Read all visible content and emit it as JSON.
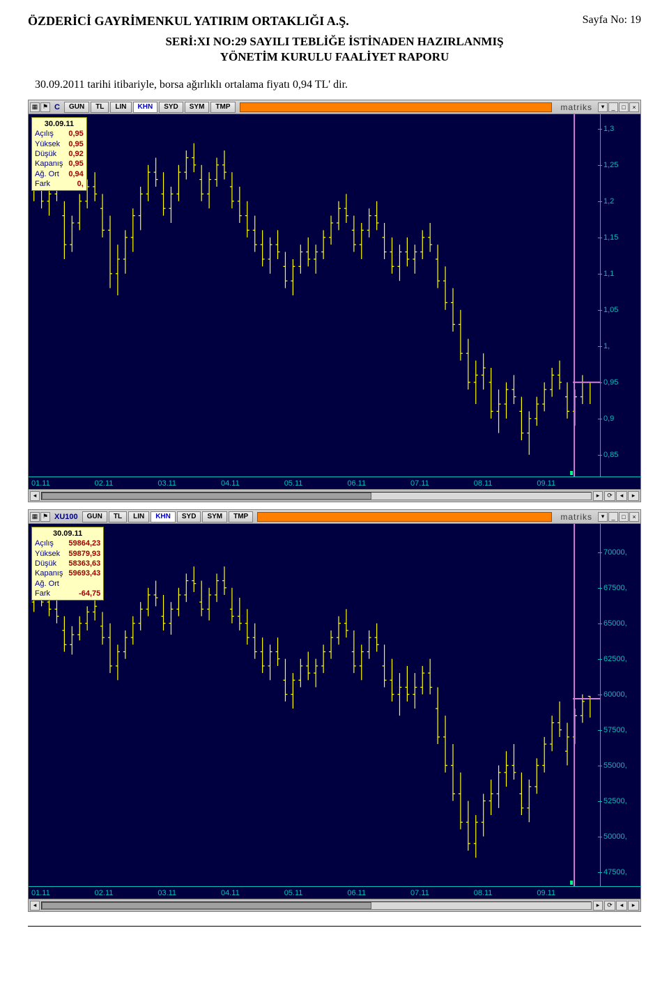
{
  "header": {
    "company": "ÖZDERİCİ GAYRİMENKUL YATIRIM ORTAKLIĞI A.Ş.",
    "page": "Sayfa No: 19"
  },
  "subtitle_line1": "SERİ:XI NO:29 SAYILI TEBLİĞE İSTİNADEN HAZIRLANMIŞ",
  "subtitle_line2": "YÖNETİM KURULU FAALİYET RAPORU",
  "intro": "30.09.2011 tarihi itibariyle, borsa ağırlıklı ortalama fiyatı  0,94 TL' dir.",
  "toolbar_buttons": [
    "GUN",
    "TL",
    "LIN",
    "KHN",
    "SYD",
    "SYM",
    "TMP"
  ],
  "toolbar_active": "KHN",
  "brand": "matriks",
  "chart1": {
    "symbol": "C",
    "bg": "#000040",
    "axis_color": "#00c0c0",
    "candle_color": "#ffff00",
    "cursor_color": "#d080d0",
    "ylim": [
      0.82,
      1.32
    ],
    "yticks": [
      {
        "v": 1.3,
        "label": "1,3"
      },
      {
        "v": 1.25,
        "label": "1,25"
      },
      {
        "v": 1.2,
        "label": "1,2"
      },
      {
        "v": 1.15,
        "label": "1,15"
      },
      {
        "v": 1.1,
        "label": "1,1"
      },
      {
        "v": 1.05,
        "label": "1,05"
      },
      {
        "v": 1.0,
        "label": "1,"
      },
      {
        "v": 0.95,
        "label": "0,95"
      },
      {
        "v": 0.9,
        "label": "0,9"
      },
      {
        "v": 0.85,
        "label": "0,85"
      }
    ],
    "xlabels": [
      "01.11",
      "02.11",
      "03.11",
      "04.11",
      "05.11",
      "06.11",
      "07.11",
      "08.11",
      "09.11"
    ],
    "cursor_x": 0.955,
    "cursor_y": 0.95,
    "ohlc": {
      "date": "30.09.11",
      "rows": [
        [
          "Açılış",
          "0,95"
        ],
        [
          "Yüksek",
          "0,95"
        ],
        [
          "Düşük",
          "0,92"
        ],
        [
          "Kapanış",
          "0,95"
        ],
        [
          "Ağ. Ort",
          "0,94"
        ],
        [
          "Fark",
          "0,"
        ]
      ]
    },
    "series": [
      [
        1.22,
        1.25,
        1.2,
        1.23
      ],
      [
        1.23,
        1.24,
        1.19,
        1.2
      ],
      [
        1.2,
        1.22,
        1.18,
        1.21
      ],
      [
        1.21,
        1.23,
        1.2,
        1.22
      ],
      [
        1.18,
        1.2,
        1.12,
        1.14
      ],
      [
        1.14,
        1.18,
        1.13,
        1.17
      ],
      [
        1.17,
        1.21,
        1.16,
        1.2
      ],
      [
        1.2,
        1.23,
        1.19,
        1.22
      ],
      [
        1.22,
        1.24,
        1.2,
        1.21
      ],
      [
        1.19,
        1.21,
        1.15,
        1.16
      ],
      [
        1.16,
        1.18,
        1.08,
        1.1
      ],
      [
        1.1,
        1.14,
        1.07,
        1.12
      ],
      [
        1.12,
        1.16,
        1.1,
        1.15
      ],
      [
        1.15,
        1.19,
        1.13,
        1.18
      ],
      [
        1.18,
        1.22,
        1.16,
        1.21
      ],
      [
        1.21,
        1.25,
        1.2,
        1.24
      ],
      [
        1.24,
        1.26,
        1.22,
        1.23
      ],
      [
        1.21,
        1.24,
        1.18,
        1.19
      ],
      [
        1.19,
        1.22,
        1.17,
        1.21
      ],
      [
        1.21,
        1.25,
        1.2,
        1.24
      ],
      [
        1.24,
        1.27,
        1.23,
        1.26
      ],
      [
        1.26,
        1.28,
        1.24,
        1.25
      ],
      [
        1.23,
        1.25,
        1.2,
        1.21
      ],
      [
        1.21,
        1.24,
        1.19,
        1.23
      ],
      [
        1.23,
        1.26,
        1.22,
        1.25
      ],
      [
        1.25,
        1.27,
        1.23,
        1.24
      ],
      [
        1.22,
        1.24,
        1.19,
        1.2
      ],
      [
        1.2,
        1.22,
        1.17,
        1.18
      ],
      [
        1.18,
        1.2,
        1.15,
        1.16
      ],
      [
        1.16,
        1.18,
        1.13,
        1.14
      ],
      [
        1.14,
        1.16,
        1.11,
        1.12
      ],
      [
        1.12,
        1.15,
        1.1,
        1.14
      ],
      [
        1.14,
        1.16,
        1.12,
        1.13
      ],
      [
        1.11,
        1.13,
        1.08,
        1.09
      ],
      [
        1.09,
        1.12,
        1.07,
        1.11
      ],
      [
        1.11,
        1.14,
        1.1,
        1.13
      ],
      [
        1.13,
        1.15,
        1.11,
        1.12
      ],
      [
        1.12,
        1.14,
        1.1,
        1.13
      ],
      [
        1.13,
        1.16,
        1.12,
        1.15
      ],
      [
        1.15,
        1.18,
        1.14,
        1.17
      ],
      [
        1.17,
        1.2,
        1.16,
        1.19
      ],
      [
        1.19,
        1.21,
        1.17,
        1.18
      ],
      [
        1.16,
        1.18,
        1.13,
        1.14
      ],
      [
        1.14,
        1.17,
        1.12,
        1.16
      ],
      [
        1.16,
        1.19,
        1.15,
        1.18
      ],
      [
        1.18,
        1.2,
        1.16,
        1.17
      ],
      [
        1.15,
        1.17,
        1.12,
        1.13
      ],
      [
        1.13,
        1.15,
        1.1,
        1.11
      ],
      [
        1.11,
        1.14,
        1.09,
        1.13
      ],
      [
        1.13,
        1.15,
        1.11,
        1.12
      ],
      [
        1.12,
        1.14,
        1.1,
        1.13
      ],
      [
        1.13,
        1.16,
        1.12,
        1.15
      ],
      [
        1.15,
        1.17,
        1.13,
        1.14
      ],
      [
        1.12,
        1.14,
        1.08,
        1.09
      ],
      [
        1.09,
        1.11,
        1.05,
        1.06
      ],
      [
        1.06,
        1.08,
        1.02,
        1.03
      ],
      [
        1.03,
        1.05,
        0.98,
        0.99
      ],
      [
        0.99,
        1.01,
        0.94,
        0.95
      ],
      [
        0.95,
        0.98,
        0.92,
        0.96
      ],
      [
        0.96,
        0.99,
        0.94,
        0.97
      ],
      [
        0.95,
        0.97,
        0.9,
        0.91
      ],
      [
        0.91,
        0.94,
        0.88,
        0.92
      ],
      [
        0.92,
        0.95,
        0.9,
        0.94
      ],
      [
        0.94,
        0.96,
        0.92,
        0.93
      ],
      [
        0.91,
        0.93,
        0.87,
        0.88
      ],
      [
        0.88,
        0.91,
        0.85,
        0.9
      ],
      [
        0.9,
        0.93,
        0.89,
        0.92
      ],
      [
        0.92,
        0.95,
        0.91,
        0.94
      ],
      [
        0.94,
        0.97,
        0.93,
        0.96
      ],
      [
        0.96,
        0.98,
        0.94,
        0.95
      ],
      [
        0.93,
        0.95,
        0.9,
        0.91
      ],
      [
        0.91,
        0.94,
        0.89,
        0.93
      ],
      [
        0.93,
        0.96,
        0.92,
        0.95
      ],
      [
        0.95,
        0.95,
        0.92,
        0.95
      ]
    ]
  },
  "chart2": {
    "symbol": "XU100",
    "bg": "#000040",
    "axis_color": "#00c0c0",
    "candle_color": "#ffff00",
    "cursor_color": "#d080d0",
    "ylim": [
      46500,
      72000
    ],
    "yticks": [
      {
        "v": 70000,
        "label": "70000,"
      },
      {
        "v": 67500,
        "label": "67500,"
      },
      {
        "v": 65000,
        "label": "65000,"
      },
      {
        "v": 62500,
        "label": "62500,"
      },
      {
        "v": 60000,
        "label": "60000,"
      },
      {
        "v": 57500,
        "label": "57500,"
      },
      {
        "v": 55000,
        "label": "55000,"
      },
      {
        "v": 52500,
        "label": "52500,"
      },
      {
        "v": 50000,
        "label": "50000,"
      },
      {
        "v": 47500,
        "label": "47500,"
      }
    ],
    "xlabels": [
      "01.11",
      "02.11",
      "03.11",
      "04.11",
      "05.11",
      "06.11",
      "07.11",
      "08.11",
      "09.11"
    ],
    "cursor_x": 0.955,
    "cursor_y": 59693,
    "ohlc": {
      "date": "30.09.11",
      "rows": [
        [
          "Açılış",
          "59864,23"
        ],
        [
          "Yüksek",
          "59879,93"
        ],
        [
          "Düşük",
          "58363,63"
        ],
        [
          "Kapanış",
          "59693,43"
        ],
        [
          "Ağ. Ort",
          ""
        ],
        [
          "Fark",
          "-64,75"
        ]
      ]
    },
    "series": [
      [
        66500,
        67500,
        65800,
        67000
      ],
      [
        67000,
        67800,
        66200,
        66500
      ],
      [
        66500,
        67200,
        65500,
        66000
      ],
      [
        66000,
        66800,
        65000,
        65500
      ],
      [
        64500,
        65500,
        63000,
        63500
      ],
      [
        63500,
        64800,
        62800,
        64200
      ],
      [
        64200,
        65500,
        63800,
        65000
      ],
      [
        65000,
        66200,
        64500,
        65800
      ],
      [
        65800,
        66800,
        65200,
        66200
      ],
      [
        64800,
        65800,
        63500,
        64000
      ],
      [
        64000,
        65000,
        61500,
        62000
      ],
      [
        62000,
        63500,
        61000,
        63000
      ],
      [
        63000,
        64500,
        62500,
        64000
      ],
      [
        64000,
        65500,
        63500,
        65000
      ],
      [
        65000,
        66500,
        64500,
        66000
      ],
      [
        66000,
        67500,
        65500,
        67000
      ],
      [
        67000,
        68000,
        66200,
        66800
      ],
      [
        65500,
        67000,
        64500,
        65000
      ],
      [
        65000,
        66500,
        64200,
        66000
      ],
      [
        66000,
        67500,
        65500,
        67000
      ],
      [
        67000,
        68500,
        66500,
        68000
      ],
      [
        68000,
        69000,
        67200,
        67800
      ],
      [
        66500,
        68000,
        65500,
        66000
      ],
      [
        66000,
        67500,
        65200,
        67000
      ],
      [
        67000,
        68500,
        66500,
        68000
      ],
      [
        68000,
        69000,
        67000,
        67500
      ],
      [
        66000,
        67500,
        65000,
        65500
      ],
      [
        65500,
        66800,
        64500,
        65000
      ],
      [
        65000,
        66000,
        63500,
        64000
      ],
      [
        64000,
        65000,
        62500,
        63000
      ],
      [
        63000,
        64000,
        61500,
        62000
      ],
      [
        62000,
        63500,
        61000,
        63000
      ],
      [
        63000,
        64000,
        62000,
        62500
      ],
      [
        61000,
        62500,
        59500,
        60000
      ],
      [
        60000,
        61500,
        59000,
        61000
      ],
      [
        61000,
        62500,
        60500,
        62000
      ],
      [
        62000,
        63000,
        61000,
        61500
      ],
      [
        61500,
        62500,
        60500,
        62000
      ],
      [
        62000,
        63500,
        61500,
        63000
      ],
      [
        63000,
        64500,
        62500,
        64000
      ],
      [
        64000,
        65500,
        63500,
        65000
      ],
      [
        65000,
        66000,
        64000,
        64500
      ],
      [
        63000,
        64500,
        61500,
        62000
      ],
      [
        62000,
        63500,
        61000,
        63000
      ],
      [
        63000,
        64500,
        62500,
        64000
      ],
      [
        64000,
        65000,
        63000,
        63500
      ],
      [
        62000,
        63500,
        60500,
        61000
      ],
      [
        61000,
        62500,
        59500,
        60000
      ],
      [
        60000,
        61500,
        58500,
        60500
      ],
      [
        60500,
        62000,
        59500,
        60000
      ],
      [
        60000,
        61500,
        59000,
        60500
      ],
      [
        60500,
        62000,
        60000,
        61500
      ],
      [
        61500,
        62500,
        60000,
        60500
      ],
      [
        59000,
        60500,
        56500,
        57000
      ],
      [
        57000,
        58500,
        54500,
        55000
      ],
      [
        55000,
        56500,
        52500,
        53000
      ],
      [
        53000,
        54500,
        50500,
        51000
      ],
      [
        51000,
        52500,
        49000,
        49500
      ],
      [
        49500,
        51500,
        48500,
        51000
      ],
      [
        51000,
        53000,
        50000,
        52500
      ],
      [
        52500,
        54000,
        51500,
        53000
      ],
      [
        53000,
        55000,
        52000,
        54500
      ],
      [
        54500,
        56000,
        53500,
        55000
      ],
      [
        55000,
        56500,
        54000,
        54500
      ],
      [
        53000,
        54500,
        51500,
        52000
      ],
      [
        52000,
        54000,
        51000,
        53500
      ],
      [
        53500,
        55500,
        53000,
        55000
      ],
      [
        55000,
        57000,
        54500,
        56500
      ],
      [
        56500,
        58500,
        56000,
        58000
      ],
      [
        58000,
        59500,
        57000,
        57500
      ],
      [
        56000,
        58000,
        55000,
        57000
      ],
      [
        57000,
        59000,
        56500,
        58500
      ],
      [
        58500,
        60000,
        58000,
        59500
      ],
      [
        59864,
        59880,
        58364,
        59693
      ]
    ]
  }
}
